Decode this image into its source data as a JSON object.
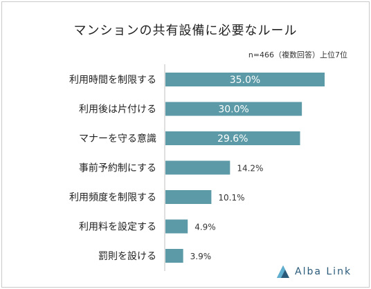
{
  "title": "マンションの共有設備に必要なルール",
  "note": "n=466（複数回答）上位7位",
  "logo_text": "Alba Link",
  "colors": {
    "bar": "#5b9aa6",
    "label_inside": "#ffffff",
    "label_outside": "#333333",
    "logo": "#2a5a7a"
  },
  "chart_data": {
    "type": "bar",
    "orientation": "horizontal",
    "categories": [
      "利用時間を制限する",
      "利用後は片付ける",
      "マナーを守る意識",
      "事前予約制にする",
      "利用頻度を制限する",
      "利用料を設定する",
      "罰則を設ける"
    ],
    "values": [
      35.0,
      30.0,
      29.6,
      14.2,
      10.1,
      4.9,
      3.9
    ],
    "value_labels": [
      "35.0%",
      "30.0%",
      "29.6%",
      "14.2%",
      "10.1%",
      "4.9%",
      "3.9%"
    ],
    "unit": "%",
    "title": "マンションの共有設備に必要なルール",
    "grid": false,
    "legend": "none"
  }
}
